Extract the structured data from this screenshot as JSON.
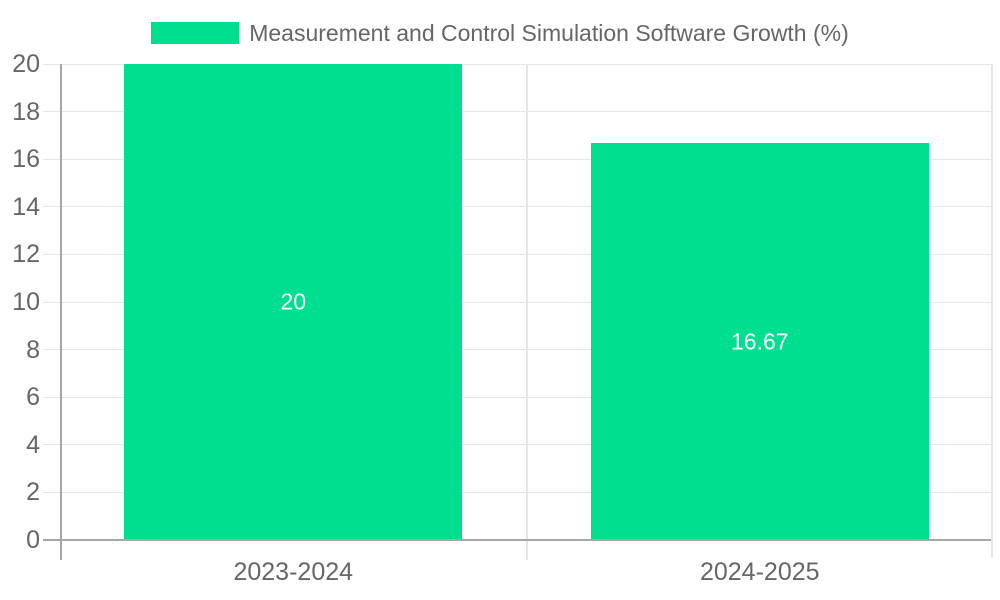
{
  "chart_data": {
    "type": "bar",
    "title": "Measurement and Control Simulation Software Growth (%)",
    "categories": [
      "2023-2024",
      "2024-2025"
    ],
    "values": [
      20,
      16.67
    ],
    "bar_labels": [
      "20",
      "16.67"
    ],
    "xlabel": "",
    "ylabel": "",
    "ylim": [
      0,
      20
    ],
    "yticks": [
      0,
      2,
      4,
      6,
      8,
      10,
      12,
      14,
      16,
      18,
      20
    ],
    "grid": true,
    "legend_position": "top-center",
    "colors": {
      "bar": "#00df8f",
      "grid": "#e6e6e6",
      "axis": "#a6a6a6",
      "border": "#e6e6e6",
      "text": "#666666",
      "bar_label": "#ffffff"
    }
  }
}
